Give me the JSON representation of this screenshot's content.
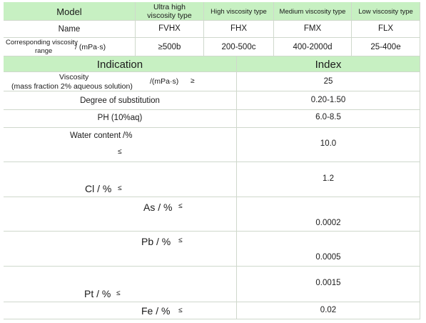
{
  "header": {
    "model": "Model",
    "ultra_line1": "Ultra high",
    "ultra_line2": "viscosity type",
    "high": "High viscosity type",
    "medium": "Medium viscosity type",
    "low": "Low viscosity type"
  },
  "name_row": {
    "label": "Name",
    "values": [
      "FVHX",
      "FHX",
      "FMX",
      "FLX"
    ]
  },
  "range_row": {
    "label_line1": "Corresponding viscosity",
    "label_line2": "range",
    "unit": "/ (mPa·s)",
    "values": [
      "≥500b",
      "200-500c",
      "400-2000d",
      "25-400e"
    ]
  },
  "spec_header": {
    "indication": "Indication",
    "index": "Index"
  },
  "specs": [
    {
      "label_line1": "Viscosity",
      "label_line2": "(mass fraction 2% aqueous solution)",
      "unit": "/(mPa·s)",
      "symbol": "≥",
      "value": "25"
    },
    {
      "label": "Degree of substitution",
      "value": "0.20-1.50"
    },
    {
      "label": "PH  (10%aq)",
      "value": "6.0-8.5"
    },
    {
      "label": "Water content",
      "unit": "/%",
      "symbol": "≤",
      "value": "10.0"
    },
    {
      "label": "Cl / %",
      "symbol": "≤",
      "value": "1.2"
    },
    {
      "label": "As / %",
      "symbol": "≤",
      "value": "0.0002"
    },
    {
      "label": "Pb / %",
      "symbol": "≤",
      "value": "0.0005"
    },
    {
      "label": "Pt / %",
      "symbol": "≤",
      "value": "0.0015"
    },
    {
      "label": "Fe / %",
      "symbol": "≤",
      "value": "0.02"
    }
  ]
}
